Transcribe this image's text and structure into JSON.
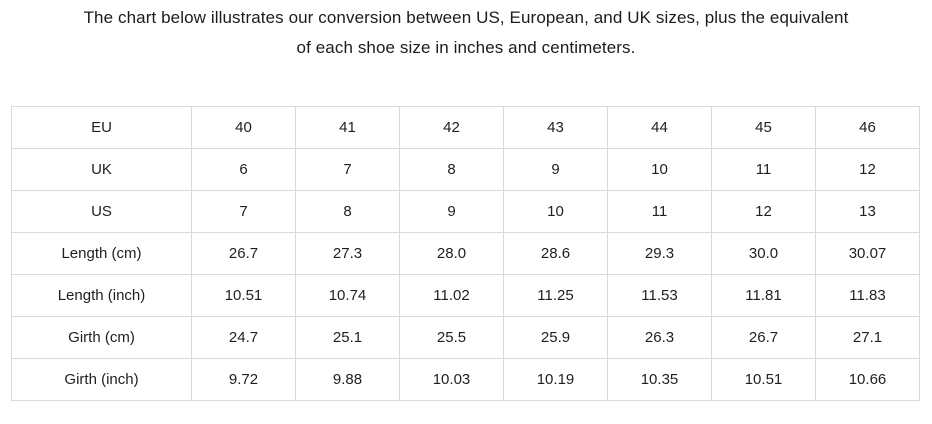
{
  "heading": {
    "line1": "The chart below illustrates our conversion between US, European, and UK sizes, plus the equivalent",
    "line2": "of each shoe size in inches and centimeters."
  },
  "table": {
    "rows": [
      {
        "label": "EU",
        "values": [
          "40",
          "41",
          "42",
          "43",
          "44",
          "45",
          "46"
        ]
      },
      {
        "label": "UK",
        "values": [
          "6",
          "7",
          "8",
          "9",
          "10",
          "11",
          "12"
        ]
      },
      {
        "label": "US",
        "values": [
          "7",
          "8",
          "9",
          "10",
          "11",
          "12",
          "13"
        ]
      },
      {
        "label": "Length (cm)",
        "values": [
          "26.7",
          "27.3",
          "28.0",
          "28.6",
          "29.3",
          "30.0",
          "30.07"
        ]
      },
      {
        "label": "Length (inch)",
        "values": [
          "10.51",
          "10.74",
          "11.02",
          "11.25",
          "11.53",
          "11.81",
          "11.83"
        ]
      },
      {
        "label": "Girth (cm)",
        "values": [
          "24.7",
          "25.1",
          "25.5",
          "25.9",
          "26.3",
          "26.7",
          "27.1"
        ]
      },
      {
        "label": "Girth (inch)",
        "values": [
          "9.72",
          "9.88",
          "10.03",
          "10.19",
          "10.35",
          "10.51",
          "10.66"
        ]
      }
    ]
  },
  "colors": {
    "text": "#1f1f1f",
    "border": "#d9d9d9",
    "background": "#ffffff"
  }
}
